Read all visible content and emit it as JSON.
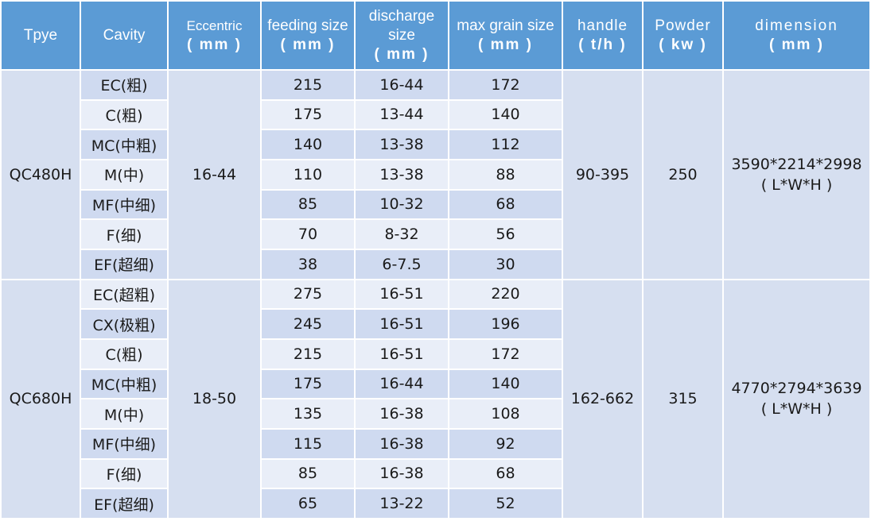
{
  "header": {
    "type": "Tpye",
    "cavity": "Cavity",
    "eccentric": "Eccentric",
    "eccentric_unit": "( mm )",
    "feeding_size": "feeding size",
    "feeding_unit": "( mm )",
    "discharge": "discharge size",
    "discharge_unit": "( mm )",
    "max_grain": "max grain size",
    "max_grain_unit": "( mm )",
    "handle": "handle",
    "handle_unit": "( t/h )",
    "powder": "Powder",
    "powder_unit": "( kw )",
    "dimension": "dimension",
    "dimension_unit": "( mm )"
  },
  "groups": [
    {
      "model": "QC480H",
      "eccentric": "16-44",
      "handle": "90-395",
      "powder": "250",
      "dimension": "3590*2214*2998",
      "dimension_note": "( L*W*H )",
      "rows": [
        {
          "cavity": "EC(粗)",
          "feeding": "215",
          "discharge": "16-44",
          "max_grain": "172"
        },
        {
          "cavity": "C(粗)",
          "feeding": "175",
          "discharge": "13-44",
          "max_grain": "140"
        },
        {
          "cavity": "MC(中粗)",
          "feeding": "140",
          "discharge": "13-38",
          "max_grain": "112"
        },
        {
          "cavity": "M(中)",
          "feeding": "110",
          "discharge": "13-38",
          "max_grain": "88"
        },
        {
          "cavity": "MF(中细)",
          "feeding": "85",
          "discharge": "10-32",
          "max_grain": "68"
        },
        {
          "cavity": "F(细)",
          "feeding": "70",
          "discharge": "8-32",
          "max_grain": "56"
        },
        {
          "cavity": "EF(超细)",
          "feeding": "38",
          "discharge": "6-7.5",
          "max_grain": "30"
        }
      ]
    },
    {
      "model": "QC680H",
      "eccentric": "18-50",
      "handle": "162-662",
      "powder": "315",
      "dimension": "4770*2794*3639",
      "dimension_note": "( L*W*H )",
      "rows": [
        {
          "cavity": "EC(超粗)",
          "feeding": "275",
          "discharge": "16-51",
          "max_grain": "220"
        },
        {
          "cavity": "CX(极粗)",
          "feeding": "245",
          "discharge": "16-51",
          "max_grain": "196"
        },
        {
          "cavity": "C(粗)",
          "feeding": "215",
          "discharge": "16-51",
          "max_grain": "172"
        },
        {
          "cavity": "MC(中粗)",
          "feeding": "175",
          "discharge": "16-44",
          "max_grain": "140"
        },
        {
          "cavity": "M(中)",
          "feeding": "135",
          "discharge": "16-38",
          "max_grain": "108"
        },
        {
          "cavity": "MF(中细)",
          "feeding": "115",
          "discharge": "16-38",
          "max_grain": "92"
        },
        {
          "cavity": "F(细)",
          "feeding": "85",
          "discharge": "16-38",
          "max_grain": "68"
        },
        {
          "cavity": "EF(超细)",
          "feeding": "65",
          "discharge": "13-22",
          "max_grain": "52"
        }
      ]
    }
  ]
}
